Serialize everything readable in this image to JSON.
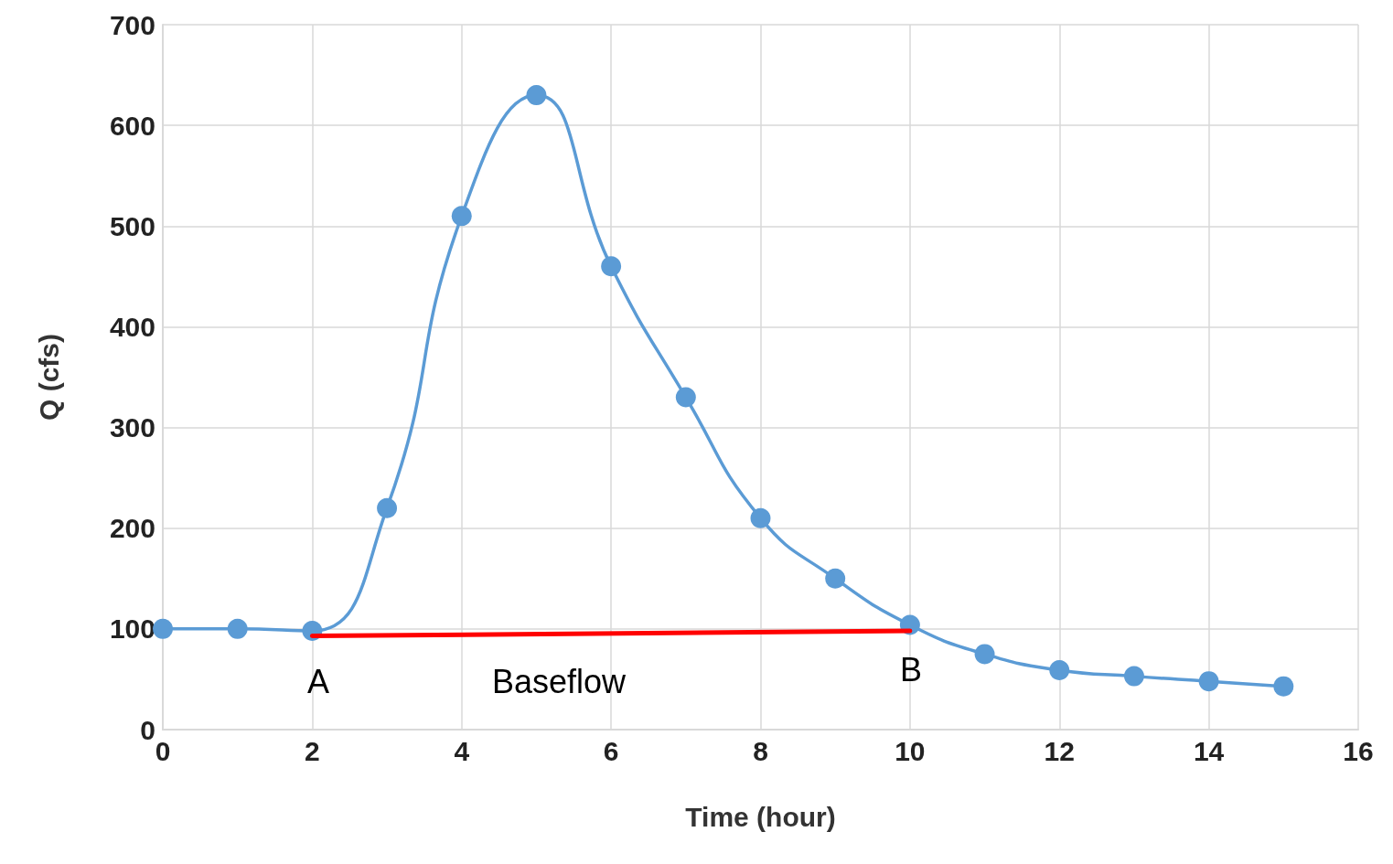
{
  "chart_data": {
    "type": "line",
    "xlabel": "Time (hour)",
    "ylabel": "Q (cfs)",
    "x": [
      0,
      1,
      2,
      3,
      4,
      5,
      6,
      7,
      8,
      9,
      10,
      11,
      12,
      13,
      14,
      15
    ],
    "series": [
      {
        "color": "#5b9bd5",
        "values": [
          100,
          100,
          98,
          220,
          510,
          630,
          460,
          330,
          210,
          150,
          104,
          75,
          59,
          53,
          48,
          43
        ]
      },
      {
        "type": "line",
        "color": "#ff0000",
        "x": [
          2,
          10
        ],
        "values": [
          93,
          98
        ],
        "marker": "none"
      }
    ],
    "xlim": [
      0,
      16
    ],
    "xticks": [
      0,
      2,
      4,
      6,
      8,
      10,
      12,
      14,
      16
    ],
    "ylim": [
      0,
      700
    ],
    "yticks": [
      0,
      100,
      200,
      300,
      400,
      500,
      600,
      700
    ],
    "grid": true,
    "marker": "circle",
    "line_style": "solid",
    "annotations": [
      "A",
      "Baseflow",
      "B"
    ]
  }
}
